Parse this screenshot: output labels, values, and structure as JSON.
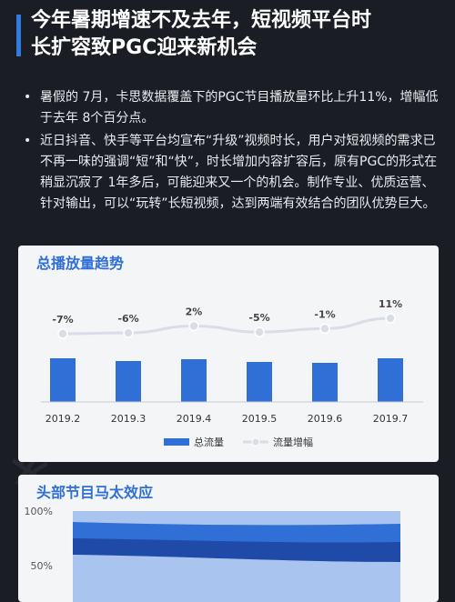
{
  "header": {
    "title_line1": "今年暑期增速不及去年，短视频平台时",
    "title_line2": "长扩容致PGC迎来新机会"
  },
  "bullets": [
    "暑假的 7月，卡思数据覆盖下的PGC节目播放量环比上升11%，增幅低于去年 8个百分点。",
    "近日抖音、快手等平台均宣布“升级”视频时长，用户对短视频的需求已不再一味的强调“短”和“快”，时长增加内容扩容后，原有PGC的形式在稍显沉寂了 1年多后，可能迎来又一个的机会。制作专业、优质运营、针对输出，可以“玩转”长短视频，达到两端有效结合的团队优势巨大。"
  ],
  "watermark": [
    "卡思数据",
    "CAASDATA"
  ],
  "colors": {
    "bar": "#2f6fd6",
    "line": "#d9dde6",
    "accent": "#2f6fd6",
    "area_light": "#a9c4ef",
    "area_mid": "#2f6fd6",
    "area_dark": "#1f4aa8"
  },
  "chart_data": [
    {
      "type": "bar",
      "title": "总播放量趋势",
      "categories": [
        "2019.2",
        "2019.3",
        "2019.4",
        "2019.5",
        "2019.6",
        "2019.7"
      ],
      "series": [
        {
          "name": "总流量",
          "type": "bar",
          "values": [
            48,
            45,
            47,
            44,
            43,
            48
          ]
        },
        {
          "name": "流量增幅",
          "type": "line",
          "values": [
            -7,
            -6,
            2,
            -5,
            -1,
            11
          ],
          "labels": [
            "-7%",
            "-6%",
            "2%",
            "-5%",
            "-1%",
            "11%"
          ]
        }
      ],
      "legend": "bottom",
      "grid": false
    },
    {
      "type": "area",
      "title": "头部节目马太效应",
      "y_ticks": [
        "100%",
        "50%"
      ],
      "stacked": true,
      "grid": false
    }
  ]
}
